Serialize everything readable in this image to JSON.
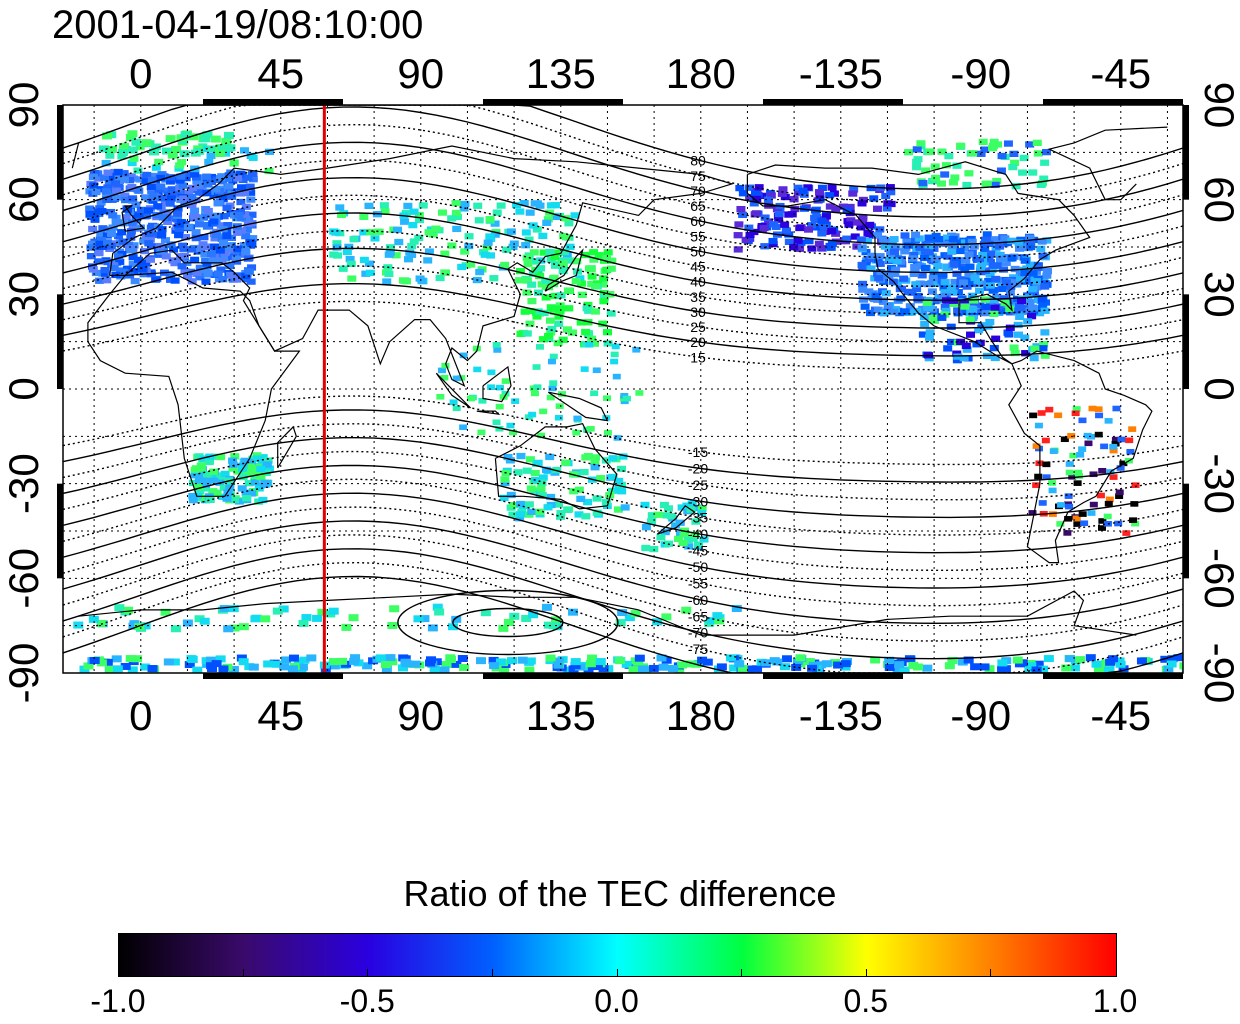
{
  "timestamp": "2001-04-19/08:10:00",
  "map": {
    "projection": "cylindrical equidistant",
    "longitude_range": [
      -25,
      335
    ],
    "latitude_range": [
      -90,
      90
    ],
    "longitude_tick_labels": [
      "0",
      "45",
      "90",
      "135",
      "180",
      "-135",
      "-90",
      "-45"
    ],
    "latitude_tick_labels": [
      "90",
      "60",
      "30",
      "0",
      "-30",
      "-60",
      "-90"
    ],
    "grid": "dotted",
    "red_line_longitude": 59,
    "magnetic_latitude_labels": [
      "80",
      "75",
      "70",
      "65",
      "60",
      "55",
      "50",
      "45",
      "40",
      "35",
      "30",
      "25",
      "20",
      "15",
      "-15",
      "-20",
      "-25",
      "-30",
      "-35",
      "-40",
      "-45",
      "-50",
      "-55",
      "-60",
      "-65",
      "-70",
      "-75"
    ],
    "colors": {
      "red_line": "#e00000",
      "frame": "#000000"
    }
  },
  "colorbar": {
    "title": "Ratio of the TEC difference",
    "range": [
      -1.0,
      1.0
    ],
    "tick_labels": [
      "-1.0",
      "-0.5",
      "0.0",
      "0.5",
      "1.0"
    ],
    "colormap": [
      "#000000",
      "#3a0a6b",
      "#2a00e0",
      "#0060ff",
      "#00ffff",
      "#00ff40",
      "#ffff00",
      "#ff8000",
      "#ff0000"
    ]
  }
}
